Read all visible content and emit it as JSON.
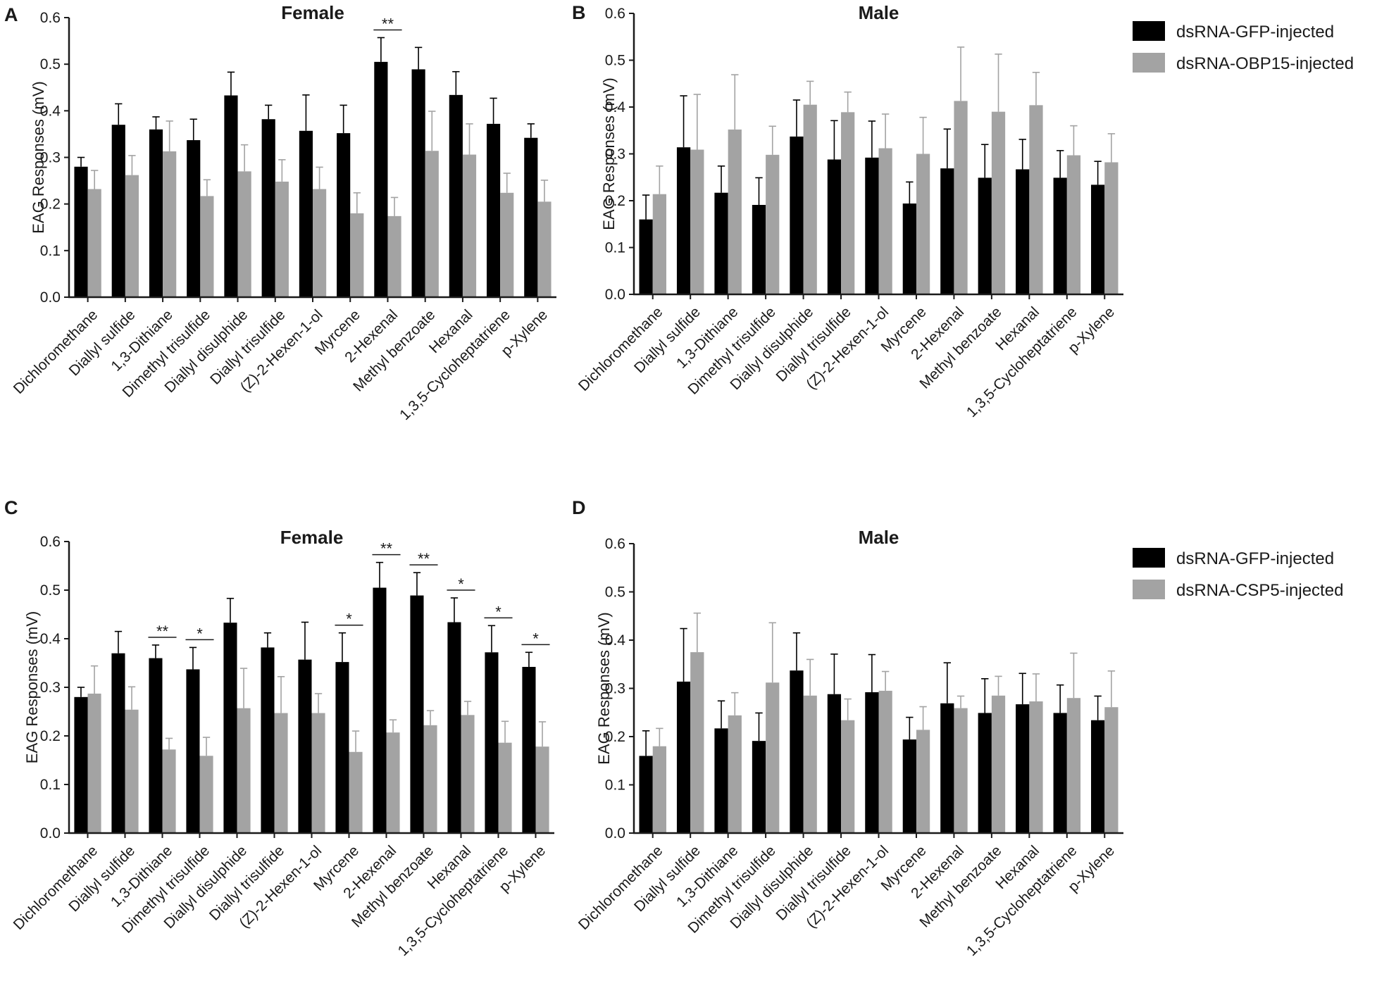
{
  "colors": {
    "gfp": "#000000",
    "treated": "#a3a3a3",
    "axis": "#1a1a1a"
  },
  "chart_data": [
    {
      "type": "bar",
      "panel": "A",
      "title": "Female",
      "ylabel": "EAG Responses (mV)",
      "ylim": [
        0,
        0.6
      ],
      "yticks": [
        "0.0",
        "0.1",
        "0.2",
        "0.3",
        "0.4",
        "0.5",
        "0.6"
      ],
      "categories": [
        "Dichloromethane",
        "Diallyl sulfide",
        "1,3-Dithiane",
        "Dimethyl trisulfide",
        "Diallyl disulphide",
        "Diallyl trisulfide",
        "(Z)-2-Hexen-1-ol",
        "Myrcene",
        "2-Hexenal",
        "Methyl benzoate",
        "Hexanal",
        "1,3,5-Cycloheptatriene",
        "p-Xylene"
      ],
      "series": [
        {
          "name": "dsRNA-GFP-injected",
          "values": [
            0.28,
            0.37,
            0.36,
            0.337,
            0.433,
            0.382,
            0.357,
            0.352,
            0.505,
            0.489,
            0.434,
            0.372,
            0.342
          ],
          "errors": [
            0.02,
            0.045,
            0.027,
            0.045,
            0.05,
            0.03,
            0.077,
            0.06,
            0.052,
            0.047,
            0.05,
            0.055,
            0.03
          ]
        },
        {
          "name": "dsRNA-OBP15-injected",
          "values": [
            0.232,
            0.262,
            0.313,
            0.217,
            0.27,
            0.248,
            0.232,
            0.18,
            0.174,
            0.314,
            0.306,
            0.224,
            0.205
          ],
          "errors": [
            0.04,
            0.042,
            0.065,
            0.035,
            0.057,
            0.047,
            0.047,
            0.044,
            0.04,
            0.085,
            0.066,
            0.042,
            0.046
          ]
        }
      ],
      "significance": [
        {
          "index": 8,
          "label": "**"
        }
      ],
      "legend": [
        "dsRNA-GFP-injected",
        "dsRNA-OBP15-injected"
      ]
    },
    {
      "type": "bar",
      "panel": "B",
      "title": "Male",
      "ylabel": "EAG Responses (mV)",
      "ylim": [
        0,
        0.6
      ],
      "yticks": [
        "0.0",
        "0.1",
        "0.2",
        "0.3",
        "0.4",
        "0.5",
        "0.6"
      ],
      "categories": [
        "Dichloromethane",
        "Diallyl sulfide",
        "1,3-Dithiane",
        "Dimethyl trisulfide",
        "Diallyl disulphide",
        "Diallyl trisulfide",
        "(Z)-2-Hexen-1-ol",
        "Myrcene",
        "2-Hexenal",
        "Methyl benzoate",
        "Hexanal",
        "1,3,5-Cycloheptatriene",
        "p-Xylene"
      ],
      "series": [
        {
          "name": "dsRNA-GFP-injected",
          "values": [
            0.16,
            0.314,
            0.217,
            0.191,
            0.337,
            0.288,
            0.292,
            0.194,
            0.269,
            0.249,
            0.267,
            0.249,
            0.234
          ],
          "errors": [
            0.052,
            0.11,
            0.057,
            0.058,
            0.078,
            0.083,
            0.078,
            0.046,
            0.084,
            0.071,
            0.064,
            0.058,
            0.05
          ]
        },
        {
          "name": "dsRNA-OBP15-injected",
          "values": [
            0.214,
            0.309,
            0.352,
            0.298,
            0.405,
            0.389,
            0.312,
            0.3,
            0.413,
            0.39,
            0.404,
            0.297,
            0.282
          ],
          "errors": [
            0.06,
            0.118,
            0.117,
            0.061,
            0.05,
            0.043,
            0.073,
            0.078,
            0.115,
            0.123,
            0.07,
            0.063,
            0.061
          ]
        }
      ],
      "significance": [],
      "legend": [
        "dsRNA-GFP-injected",
        "dsRNA-OBP15-injected"
      ]
    },
    {
      "type": "bar",
      "panel": "C",
      "title": "Female",
      "ylabel": "EAG Responses (mV)",
      "ylim": [
        0,
        0.6
      ],
      "yticks": [
        "0.0",
        "0.1",
        "0.2",
        "0.3",
        "0.4",
        "0.5",
        "0.6"
      ],
      "categories": [
        "Dichloromethane",
        "Diallyl sulfide",
        "1,3-Dithiane",
        "Dimethyl trisulfide",
        "Diallyl disulphide",
        "Diallyl trisulfide",
        "(Z)-2-Hexen-1-ol",
        "Myrcene",
        "2-Hexenal",
        "Methyl benzoate",
        "Hexanal",
        "1,3,5-Cycloheptatriene",
        "p-Xylene"
      ],
      "series": [
        {
          "name": "dsRNA-GFP-injected",
          "values": [
            0.28,
            0.37,
            0.36,
            0.337,
            0.433,
            0.382,
            0.357,
            0.352,
            0.505,
            0.489,
            0.434,
            0.372,
            0.342
          ],
          "errors": [
            0.02,
            0.045,
            0.027,
            0.045,
            0.05,
            0.03,
            0.077,
            0.06,
            0.052,
            0.047,
            0.05,
            0.055,
            0.03
          ]
        },
        {
          "name": "dsRNA-CSP5-injected",
          "values": [
            0.287,
            0.254,
            0.172,
            0.159,
            0.257,
            0.247,
            0.247,
            0.167,
            0.207,
            0.222,
            0.243,
            0.186,
            0.178
          ],
          "errors": [
            0.057,
            0.047,
            0.023,
            0.038,
            0.082,
            0.075,
            0.04,
            0.043,
            0.026,
            0.03,
            0.028,
            0.044,
            0.051
          ]
        }
      ],
      "significance": [
        {
          "index": 2,
          "label": "**"
        },
        {
          "index": 3,
          "label": "*"
        },
        {
          "index": 7,
          "label": "*"
        },
        {
          "index": 8,
          "label": "**"
        },
        {
          "index": 9,
          "label": "**"
        },
        {
          "index": 10,
          "label": "*"
        },
        {
          "index": 11,
          "label": "*"
        },
        {
          "index": 12,
          "label": "*"
        }
      ],
      "legend": [
        "dsRNA-GFP-injected",
        "dsRNA-CSP5-injected"
      ]
    },
    {
      "type": "bar",
      "panel": "D",
      "title": "Male",
      "ylabel": "EAG Responses (mV)",
      "ylim": [
        0,
        0.6
      ],
      "yticks": [
        "0.0",
        "0.1",
        "0.2",
        "0.3",
        "0.4",
        "0.5",
        "0.6"
      ],
      "categories": [
        "Dichloromethane",
        "Diallyl sulfide",
        "1,3-Dithiane",
        "Dimethyl trisulfide",
        "Diallyl disulphide",
        "Diallyl trisulfide",
        "(Z)-2-Hexen-1-ol",
        "Myrcene",
        "2-Hexenal",
        "Methyl benzoate",
        "Hexanal",
        "1,3,5-Cycloheptatriene",
        "p-Xylene"
      ],
      "series": [
        {
          "name": "dsRNA-GFP-injected",
          "values": [
            0.16,
            0.314,
            0.217,
            0.191,
            0.337,
            0.288,
            0.292,
            0.194,
            0.269,
            0.249,
            0.267,
            0.249,
            0.234
          ],
          "errors": [
            0.052,
            0.11,
            0.057,
            0.058,
            0.078,
            0.083,
            0.078,
            0.046,
            0.084,
            0.071,
            0.064,
            0.058,
            0.05
          ]
        },
        {
          "name": "dsRNA-CSP5-injected",
          "values": [
            0.18,
            0.375,
            0.244,
            0.312,
            0.285,
            0.234,
            0.295,
            0.214,
            0.259,
            0.285,
            0.273,
            0.28,
            0.261
          ],
          "errors": [
            0.037,
            0.081,
            0.047,
            0.124,
            0.075,
            0.044,
            0.04,
            0.048,
            0.025,
            0.04,
            0.057,
            0.093,
            0.075
          ]
        }
      ],
      "significance": [],
      "legend": [
        "dsRNA-GFP-injected",
        "dsRNA-CSP5-injected"
      ]
    }
  ]
}
